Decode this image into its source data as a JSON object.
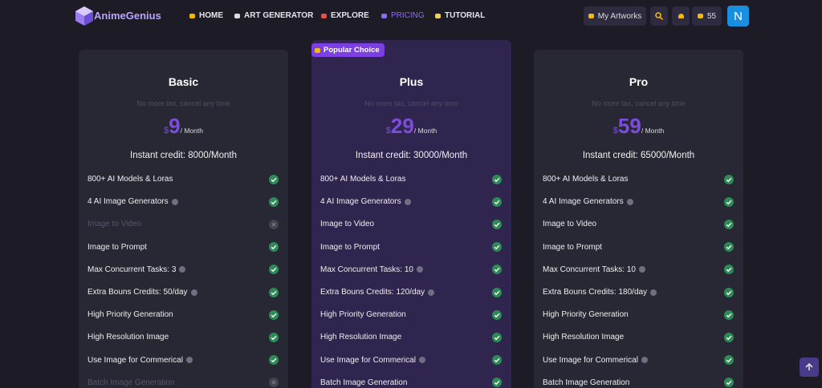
{
  "nav": {
    "logo": "AnimeGenius",
    "links": [
      {
        "label": "HOME",
        "active": false
      },
      {
        "label": "ART GENERATOR",
        "active": false
      },
      {
        "label": "EXPLORE",
        "active": false
      },
      {
        "label": "PRICING",
        "active": true
      },
      {
        "label": "TUTORIAL",
        "active": false
      }
    ],
    "artworks": "My Artworks",
    "credits": "55",
    "avatar": "N"
  },
  "plans": [
    {
      "name": "Basic",
      "subtitle": "No more tax, cancel any time",
      "currency": "$",
      "price": "9",
      "period": "/ Month",
      "credit": "Instant credit: 8000/Month",
      "highlight": false,
      "features": [
        {
          "text": "800+ AI Models & Loras",
          "info": false,
          "available": true
        },
        {
          "text": "4 AI Image Generators",
          "info": true,
          "available": true
        },
        {
          "text": "Image to Video",
          "info": false,
          "available": false
        },
        {
          "text": "Image to Prompt",
          "info": false,
          "available": true
        },
        {
          "text": "Max Concurrent Tasks: 3",
          "info": true,
          "available": true
        },
        {
          "text": "Extra Bouns Credits: 50/day",
          "info": true,
          "available": true
        },
        {
          "text": "High Priority Generation",
          "info": false,
          "available": true
        },
        {
          "text": "High Resolution Image",
          "info": false,
          "available": true
        },
        {
          "text": "Use Image for Commerical",
          "info": true,
          "available": true
        },
        {
          "text": "Batch Image Generation",
          "info": false,
          "available": false
        }
      ]
    },
    {
      "name": "Plus",
      "badge": "Popular Choice",
      "subtitle": "No more tax, cancel any time",
      "currency": "$",
      "price": "29",
      "period": "/ Month",
      "credit": "Instant credit: 30000/Month",
      "highlight": true,
      "features": [
        {
          "text": "800+ AI Models & Loras",
          "info": false,
          "available": true
        },
        {
          "text": "4 AI Image Generators",
          "info": true,
          "available": true
        },
        {
          "text": "Image to Video",
          "info": false,
          "available": true
        },
        {
          "text": "Image to Prompt",
          "info": false,
          "available": true
        },
        {
          "text": "Max Concurrent Tasks: 10",
          "info": true,
          "available": true
        },
        {
          "text": "Extra Bouns Credits: 120/day",
          "info": true,
          "available": true
        },
        {
          "text": "High Priority Generation",
          "info": false,
          "available": true
        },
        {
          "text": "High Resolution Image",
          "info": false,
          "available": true
        },
        {
          "text": "Use Image for Commerical",
          "info": true,
          "available": true
        },
        {
          "text": "Batch Image Generation",
          "info": false,
          "available": true
        }
      ]
    },
    {
      "name": "Pro",
      "subtitle": "No more tax, cancel any time",
      "currency": "$",
      "price": "59",
      "period": "/ Month",
      "credit": "Instant credit: 65000/Month",
      "highlight": false,
      "features": [
        {
          "text": "800+ AI Models & Loras",
          "info": false,
          "available": true
        },
        {
          "text": "4 AI Image Generators",
          "info": true,
          "available": true
        },
        {
          "text": "Image to Video",
          "info": false,
          "available": true
        },
        {
          "text": "Image to Prompt",
          "info": false,
          "available": true
        },
        {
          "text": "Max Concurrent Tasks: 10",
          "info": true,
          "available": true
        },
        {
          "text": "Extra Bouns Credits: 180/day",
          "info": true,
          "available": true
        },
        {
          "text": "High Priority Generation",
          "info": false,
          "available": true
        },
        {
          "text": "High Resolution Image",
          "info": false,
          "available": true
        },
        {
          "text": "Use Image for Commerical",
          "info": true,
          "available": true
        },
        {
          "text": "Batch Image Generation",
          "info": false,
          "available": true
        }
      ]
    }
  ]
}
